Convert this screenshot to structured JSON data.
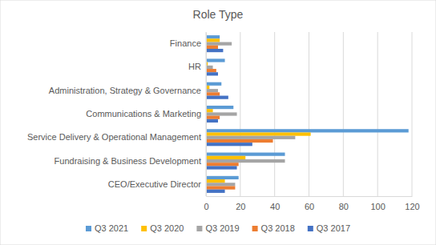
{
  "chart_data": {
    "type": "bar",
    "orientation": "horizontal",
    "title": "Role Type",
    "categories": [
      "Finance",
      "HR",
      "Administration, Strategy & Governance",
      "Communications & Marketing",
      "Service Delivery & Operational Management",
      "Fundraising & Business Development",
      "CEO/Executive Director"
    ],
    "series": [
      {
        "name": "Q3 2021",
        "color": "#5B9BD5",
        "values": [
          8,
          11,
          9,
          16,
          118,
          46,
          19
        ]
      },
      {
        "name": "Q3 2020",
        "color": "#FFC000",
        "values": [
          8,
          1,
          2,
          4,
          61,
          23,
          11
        ]
      },
      {
        "name": "Q3 2019",
        "color": "#A5A5A5",
        "values": [
          15,
          4,
          7,
          18,
          52,
          46,
          17
        ]
      },
      {
        "name": "Q3 2018",
        "color": "#ED7D31",
        "values": [
          7,
          6,
          8,
          8,
          39,
          19,
          17
        ]
      },
      {
        "name": "Q3 2017",
        "color": "#4472C4",
        "values": [
          10,
          7,
          13,
          7,
          27,
          18,
          11
        ]
      }
    ],
    "xlim": [
      0,
      120
    ],
    "xticks": [
      0,
      20,
      40,
      60,
      80,
      100,
      120
    ],
    "grid": true,
    "legend": "bottom"
  }
}
